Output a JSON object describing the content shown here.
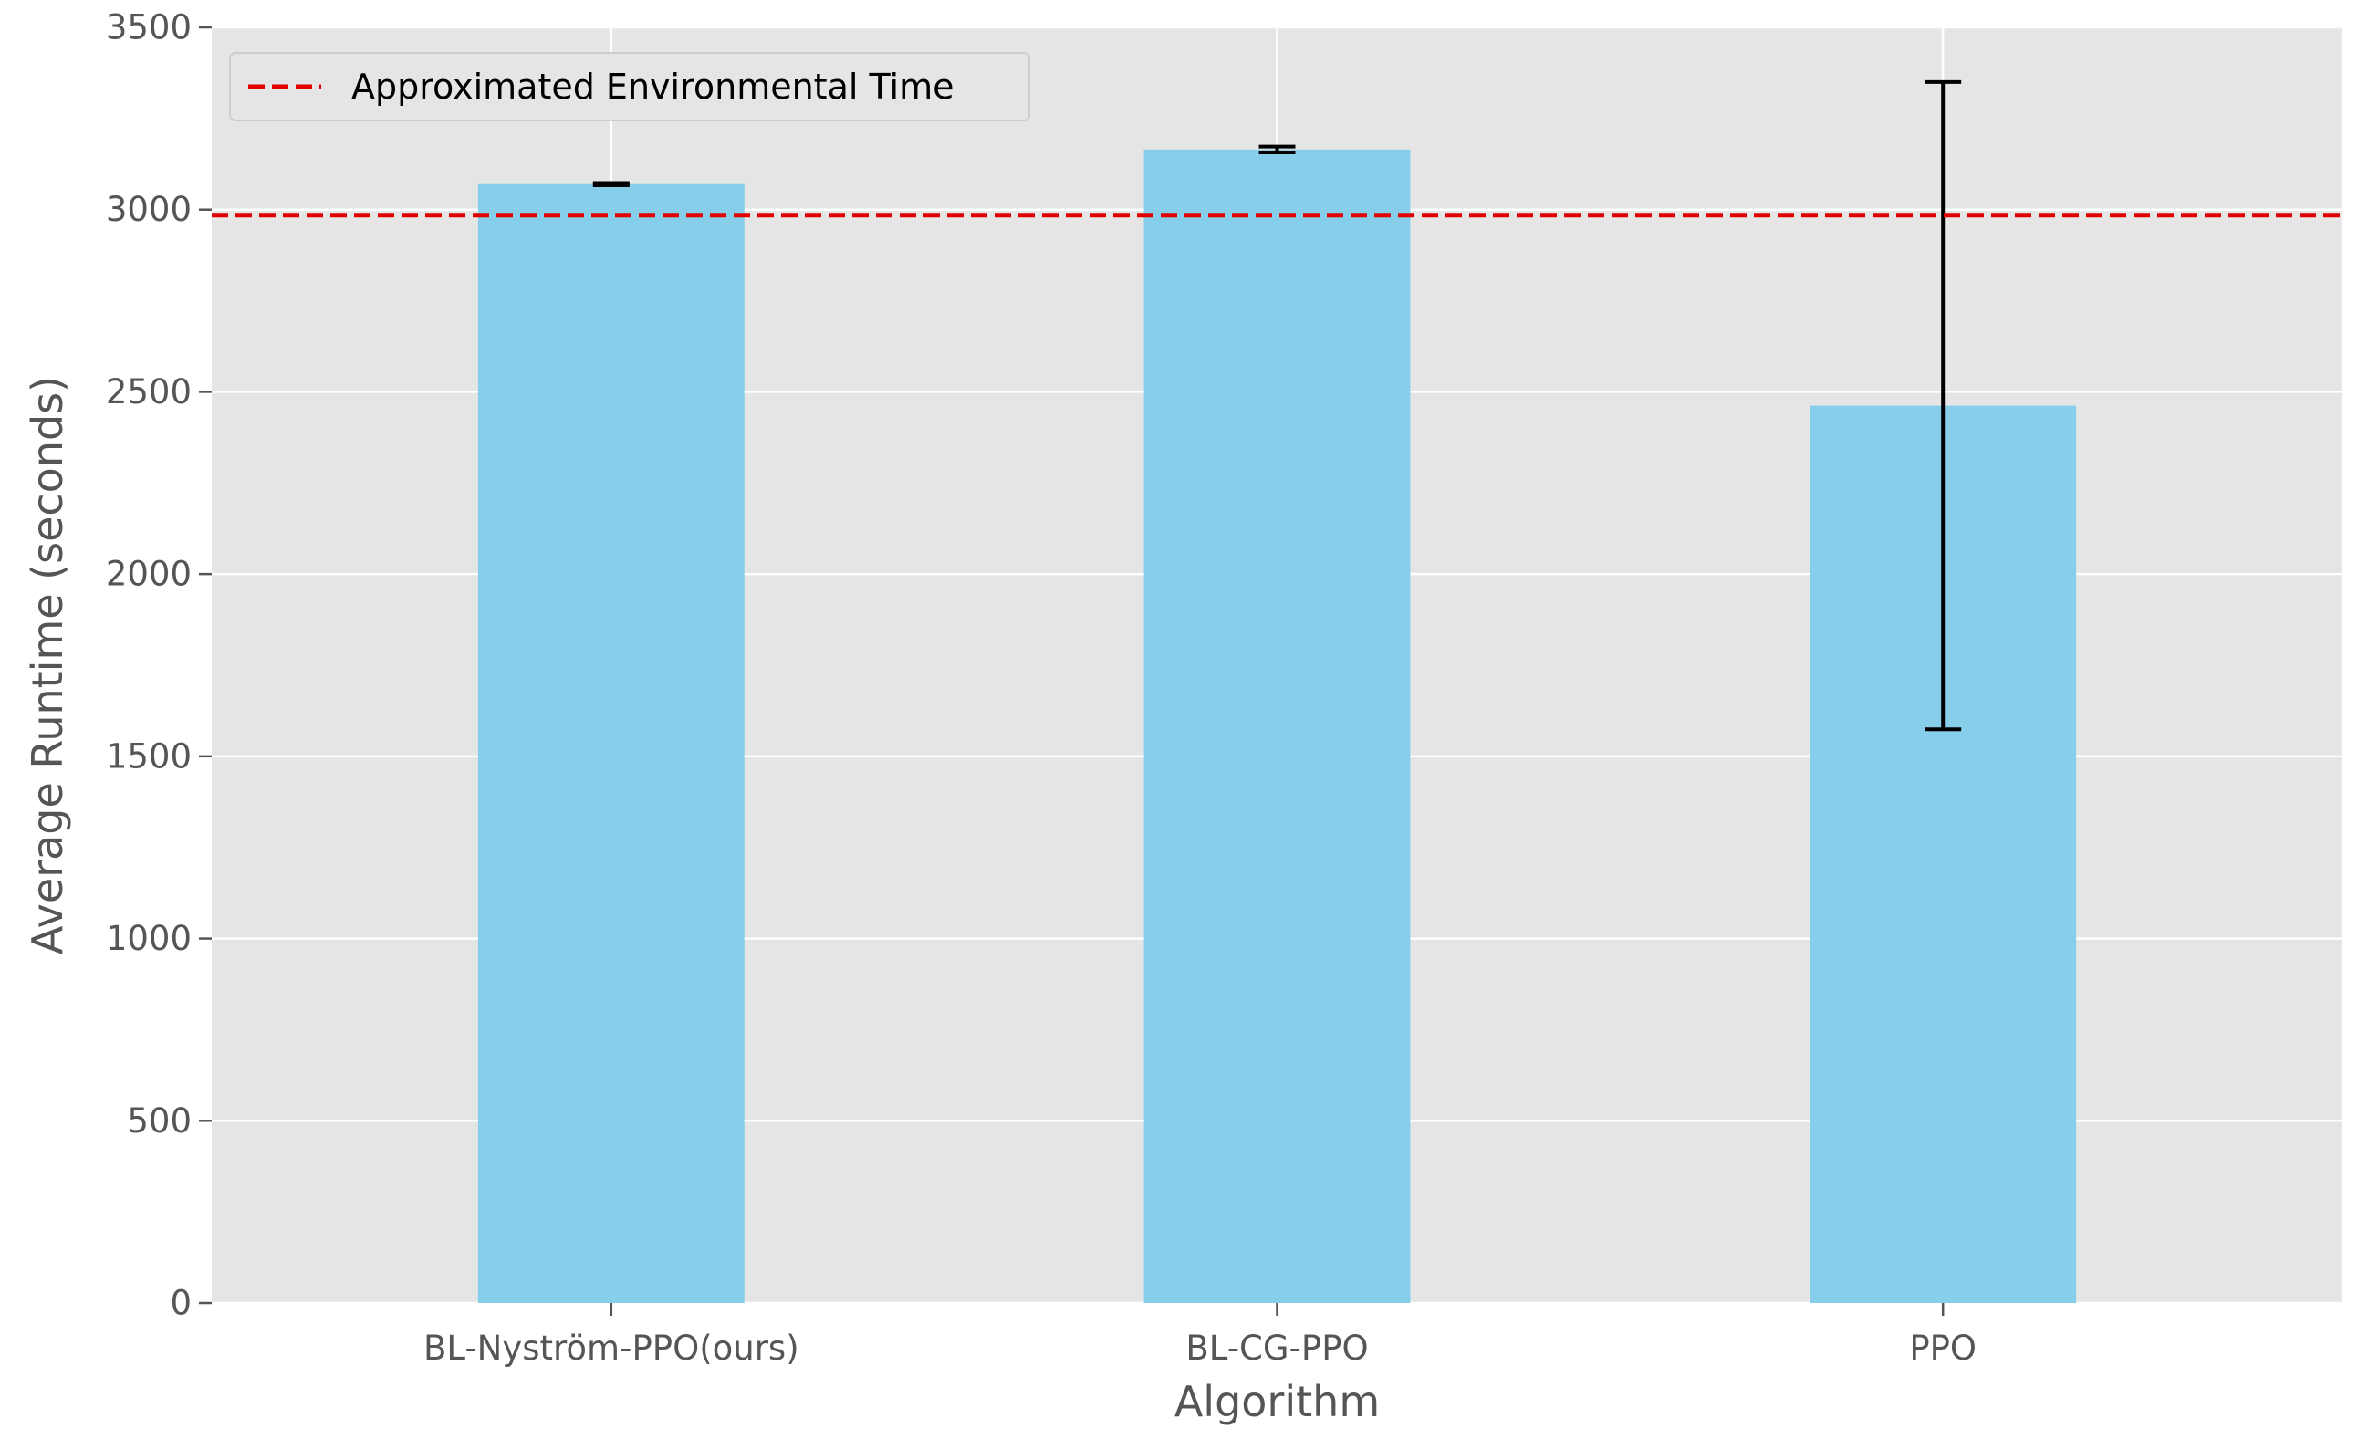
{
  "chart_data": {
    "type": "bar",
    "title": "",
    "xlabel": "Algorithm",
    "ylabel": "Average Runtime (seconds)",
    "categories": [
      "BL-Nyström-PPO(ours)",
      "BL-CG-PPO",
      "PPO"
    ],
    "values": [
      3070,
      3165,
      2462
    ],
    "error": [
      3,
      8,
      888
    ],
    "ylim": [
      0,
      3500
    ],
    "yticks": [
      0,
      500,
      1000,
      1500,
      2000,
      2500,
      3000,
      3500
    ],
    "reference_line": {
      "label": "Approximated Environmental Time",
      "value": 2985,
      "color": "#e00000",
      "style": "dashed"
    },
    "bar_color": "#87ceeb",
    "background_color": "#e5e5e5",
    "grid": true,
    "legend_position": "top-left"
  }
}
